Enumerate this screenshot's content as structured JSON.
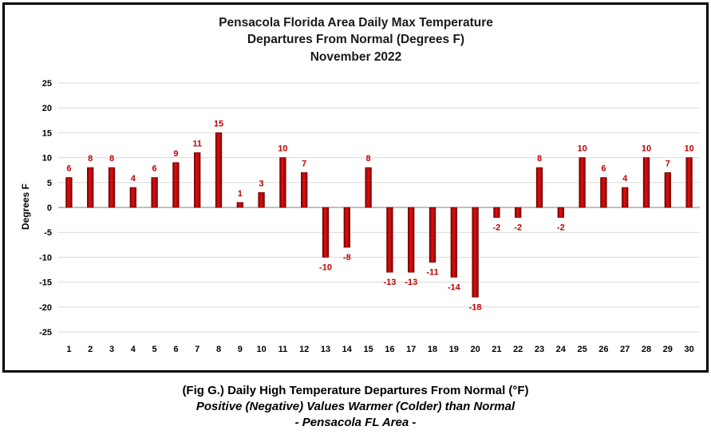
{
  "chart_data": {
    "type": "bar",
    "title_lines": [
      "Pensacola Florida Area Daily Max Temperature",
      "Departures From Normal (Degrees F)",
      "November 2022"
    ],
    "xlabel": "",
    "ylabel": "Degrees F",
    "ylim": [
      -25,
      25
    ],
    "yticks": [
      25,
      20,
      15,
      10,
      5,
      0,
      -5,
      -10,
      -15,
      -20,
      -25
    ],
    "grid": true,
    "categories": [
      "1",
      "2",
      "3",
      "4",
      "5",
      "6",
      "7",
      "8",
      "9",
      "10",
      "11",
      "12",
      "13",
      "14",
      "15",
      "16",
      "17",
      "18",
      "19",
      "20",
      "21",
      "22",
      "23",
      "24",
      "25",
      "26",
      "27",
      "28",
      "29",
      "30"
    ],
    "values": [
      6,
      8,
      8,
      4,
      6,
      9,
      11,
      15,
      1,
      3,
      10,
      7,
      -10,
      -8,
      8,
      -13,
      -13,
      -11,
      -14,
      -18,
      -2,
      -2,
      8,
      -2,
      10,
      6,
      4,
      10,
      7,
      10
    ],
    "bar_color": "#c00000",
    "label_color": "#c00000"
  },
  "caption": {
    "line1": "(Fig G.) Daily High Temperature Departures From Normal (°F)",
    "line2": "Positive (Negative) Values Warmer (Colder) than Normal",
    "line3": "- Pensacola FL Area -"
  }
}
